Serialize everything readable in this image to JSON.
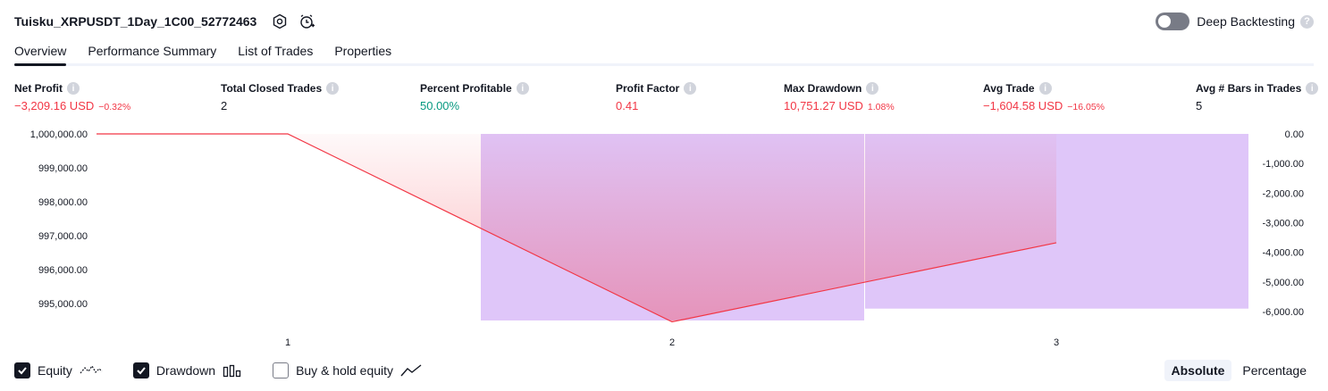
{
  "header": {
    "strategy_name": "Tuisku_XRPUSDT_1Day_1C00_52772463",
    "settings_icon": "gear-icon",
    "alert_icon": "alarm-add-icon"
  },
  "deep_backtesting": {
    "label": "Deep Backtesting",
    "enabled": false,
    "help": "?"
  },
  "tabs": [
    {
      "label": "Overview",
      "active": true
    },
    {
      "label": "Performance Summary",
      "active": false
    },
    {
      "label": "List of Trades",
      "active": false
    },
    {
      "label": "Properties",
      "active": false
    }
  ],
  "metrics": [
    {
      "label": "Net Profit",
      "value": "−3,209.16 USD",
      "pct": "−0.32%",
      "tone": "neg"
    },
    {
      "label": "Total Closed Trades",
      "value": "2",
      "pct": "",
      "tone": "neutral"
    },
    {
      "label": "Percent Profitable",
      "value": "50.00%",
      "pct": "",
      "tone": "pos"
    },
    {
      "label": "Profit Factor",
      "value": "0.41",
      "pct": "",
      "tone": "neg"
    },
    {
      "label": "Max Drawdown",
      "value": "10,751.27 USD",
      "pct": "1.08%",
      "tone": "neg"
    },
    {
      "label": "Avg Trade",
      "value": "−1,604.58 USD",
      "pct": "−16.05%",
      "tone": "neg"
    },
    {
      "label": "Avg # Bars in Trades",
      "value": "5",
      "pct": "",
      "tone": "neutral"
    }
  ],
  "info_glyph": "i",
  "chart_data": {
    "type": "line",
    "x_ticks": [
      "1",
      "2",
      "3"
    ],
    "left_axis": {
      "ticks": [
        "1,000,000.00",
        "999,000.00",
        "998,000.00",
        "997,000.00",
        "996,000.00",
        "995,000.00"
      ],
      "range": [
        994500,
        1000000
      ]
    },
    "right_axis": {
      "ticks": [
        "0.00",
        "-1,000.00",
        "-2,000.00",
        "-3,000.00",
        "-4,000.00",
        "-5,000.00",
        "-6,000.00"
      ],
      "range": [
        -6300,
        0
      ]
    },
    "series": [
      {
        "name": "Equity",
        "color": "#f23645",
        "x": [
          0.2,
          1,
          2,
          3
        ],
        "values": [
          1000000,
          1000000,
          994459,
          996791
        ]
      },
      {
        "name": "Drawdown",
        "type": "bar",
        "color": "#c9a0f5",
        "x": [
          2,
          3
        ],
        "values": [
          -6300,
          -5900
        ]
      }
    ]
  },
  "footer": {
    "legend": [
      {
        "label": "Equity",
        "checked": true,
        "icon": "equity-line-icon"
      },
      {
        "label": "Drawdown",
        "checked": true,
        "icon": "drawdown-bars-icon"
      },
      {
        "label": "Buy & hold equity",
        "checked": false,
        "icon": "buy-hold-line-icon"
      }
    ],
    "modes": [
      {
        "label": "Absolute",
        "active": true
      },
      {
        "label": "Percentage",
        "active": false
      }
    ]
  }
}
